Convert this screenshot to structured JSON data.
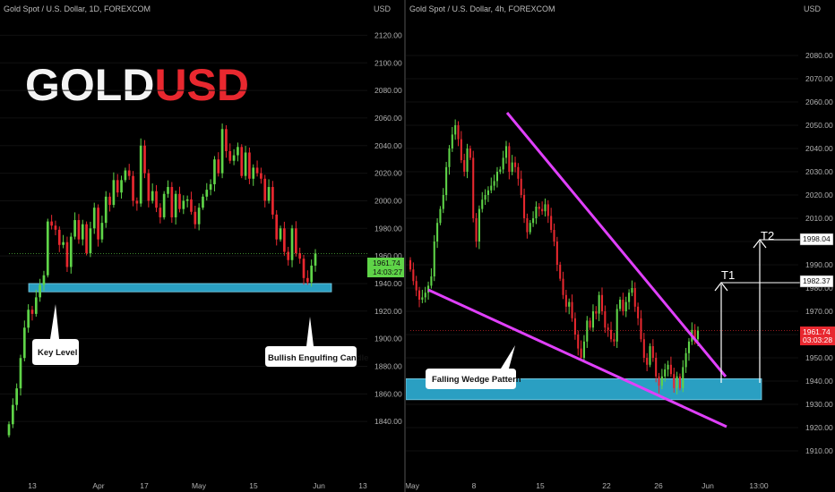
{
  "left_chart": {
    "title": "Gold Spot / U.S. Dollar, 1D, FOREXCOM",
    "axis_unit": "USD",
    "brand": {
      "part1": "GOLD",
      "part2": "USD"
    },
    "current_price": "1961.74",
    "countdown": "14:03:27",
    "callouts": {
      "key_level": "Key Level",
      "engulfing": "Bullish Engulfing Candle"
    },
    "colors": {
      "up": "#5fd448",
      "down": "#e8282f",
      "zone": "#2a9fc2",
      "price_tag": "#5fd448"
    }
  },
  "right_chart": {
    "title": "Gold Spot / U.S. Dollar, 4h, FOREXCOM",
    "axis_unit": "USD",
    "current_price": "1961.74",
    "countdown": "03:03:28",
    "targets": [
      {
        "label": "T1",
        "price": "1982.37",
        "value": 1982.37
      },
      {
        "label": "T2",
        "price": "1998.04",
        "value": 1998.04
      }
    ],
    "callouts": {
      "wedge": "Falling Wedge Pattern"
    },
    "colors": {
      "wedge": "#e040fb",
      "zone": "#2a9fc2",
      "price_tag": "#e8282f"
    }
  },
  "chart_data": [
    {
      "type": "candlestick",
      "title": "Gold Spot / U.S. Dollar, 1D, FOREXCOM",
      "ylabel": "USD",
      "ylim": [
        1820,
        2130
      ],
      "y_ticks": [
        "2120.00",
        "2100.00",
        "2080.00",
        "2060.00",
        "2040.00",
        "2020.00",
        "2000.00",
        "1980.00",
        "1960.00",
        "1940.00",
        "1920.00",
        "1900.00",
        "1880.00",
        "1860.00",
        "1840.00"
      ],
      "x_ticks": [
        "13",
        "Apr",
        "17",
        "May",
        "15",
        "Jun",
        "13"
      ],
      "key_level_zone": [
        1934,
        1940
      ],
      "closes": [
        1838,
        1852,
        1864,
        1886,
        1908,
        1921,
        1918,
        1930,
        1939,
        1946,
        1985,
        1982,
        1979,
        1968,
        1970,
        1952,
        1974,
        1986,
        1972,
        1983,
        1962,
        1980,
        1995,
        1972,
        1984,
        2003,
        1997,
        2015,
        2006,
        2015,
        2022,
        2018,
        2000,
        1998,
        2040,
        2020,
        2000,
        2007,
        1995,
        1988,
        2005,
        2010,
        1988,
        2005,
        1994,
        2000,
        2001,
        1992,
        1983,
        1995,
        2003,
        2008,
        2012,
        2030,
        2020,
        2052,
        2036,
        2029,
        2033,
        2039,
        2018,
        2035,
        2016,
        2024,
        2020,
        2016,
        2000,
        2010,
        1990,
        1972,
        1980,
        1963,
        1957,
        1980,
        1962,
        1958,
        1944,
        1941,
        1953,
        1961.74
      ],
      "current_price": 1961.74
    },
    {
      "type": "candlestick",
      "title": "Gold Spot / U.S. Dollar, 4h, FOREXCOM",
      "ylabel": "USD",
      "ylim": [
        1905,
        2090
      ],
      "y_ticks": [
        "2080.00",
        "2070.00",
        "2060.00",
        "2050.00",
        "2040.00",
        "2030.00",
        "2020.00",
        "2010.00",
        "2000.00",
        "1990.00",
        "1980.00",
        "1970.00",
        "1960.00",
        "1950.00",
        "1940.00",
        "1930.00",
        "1920.00",
        "1910.00"
      ],
      "x_ticks": [
        "May",
        "8",
        "15",
        "22",
        "26",
        "Jun",
        "13:00"
      ],
      "support_zone": [
        1932,
        1941
      ],
      "targets": {
        "T1": 1982.37,
        "T2": 1998.04
      },
      "closes": [
        1988,
        1983,
        1979,
        1975,
        1976,
        1978,
        1981,
        1985,
        2000,
        2008,
        2014,
        2020,
        2032,
        2040,
        2046,
        2050,
        2044,
        2035,
        2030,
        2040,
        2036,
        2010,
        2000,
        2014,
        2018,
        2020,
        2022,
        2024,
        2026,
        2030,
        2031,
        2036,
        2041,
        2030,
        2034,
        2032,
        2027,
        2020,
        2010,
        2004,
        2008,
        2010,
        2015,
        2014,
        2013,
        2016,
        2011,
        2005,
        2000,
        1990,
        1984,
        1977,
        1972,
        1974,
        1967,
        1960,
        1954,
        1950,
        1957,
        1966,
        1963,
        1970,
        1969,
        1977,
        1970,
        1963,
        1962,
        1958,
        1957,
        1971,
        1975,
        1970,
        1974,
        1978,
        1980,
        1972,
        1967,
        1958,
        1950,
        1947,
        1955,
        1950,
        1942,
        1938,
        1942,
        1945,
        1947,
        1943,
        1937,
        1942,
        1937,
        1946,
        1952,
        1957,
        1962,
        1958,
        1961.74
      ],
      "current_price": 1961.74
    }
  ]
}
